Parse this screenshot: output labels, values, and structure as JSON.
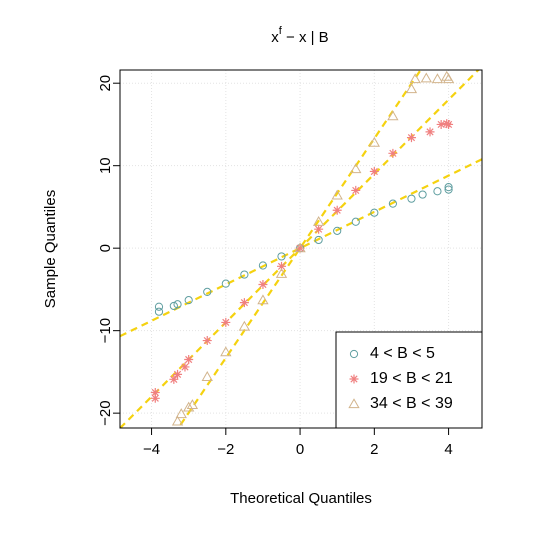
{
  "chart_data": {
    "type": "qqplot",
    "title": {
      "base": "x",
      "superscript": "f",
      "rest": " − x | B"
    },
    "x_label": "Theoretical Quantiles",
    "y_label": "Sample Quantiles",
    "xlim": [
      -4.85,
      4.9
    ],
    "ylim": [
      -21.8,
      21.6
    ],
    "xticks": [
      {
        "value": -4,
        "label": "−4"
      },
      {
        "value": -2,
        "label": "−2"
      },
      0,
      2,
      4
    ],
    "yticks": [
      {
        "value": -20,
        "label": "−20"
      },
      {
        "value": -10,
        "label": "−10"
      },
      0,
      10,
      20
    ],
    "grid": true,
    "legend": "bottomright",
    "line_color": "#f5d20f",
    "series": [
      {
        "name": "4 < B < 5",
        "color": "#5f9ea0",
        "marker": "circle",
        "line_intercept": 0,
        "line_slope": 2.2,
        "x": [
          -3.8,
          -3.8,
          -3.4,
          -3.3,
          -3.0,
          -2.5,
          -2.0,
          -1.5,
          -1.0,
          -0.5,
          0,
          0.5,
          1.0,
          1.5,
          2.0,
          2.5,
          3.0,
          3.3,
          3.7,
          4.0,
          4.0
        ],
        "values": [
          -7.1,
          -7.7,
          -7.0,
          -6.8,
          -6.3,
          -5.3,
          -4.3,
          -3.2,
          -2.1,
          -1.0,
          0,
          1.0,
          2.1,
          3.2,
          4.3,
          5.4,
          6.0,
          6.5,
          6.9,
          7.4,
          7.1
        ]
      },
      {
        "name": "19 < B < 21",
        "color": "#f08080",
        "marker": "asterisk",
        "line_intercept": 0,
        "line_slope": 4.5,
        "x": [
          -3.9,
          -3.9,
          -3.4,
          -3.3,
          -3.1,
          -3.0,
          -2.5,
          -2.0,
          -1.5,
          -1.0,
          -0.5,
          0,
          0.5,
          1.0,
          1.5,
          2.0,
          2.5,
          3.0,
          3.5,
          3.8,
          3.95,
          4.0
        ],
        "values": [
          -17.5,
          -18.2,
          -15.9,
          -15.3,
          -14.4,
          -13.5,
          -11.2,
          -9.0,
          -6.6,
          -4.4,
          -2.2,
          0,
          2.3,
          4.6,
          7.0,
          9.3,
          11.5,
          13.4,
          14.1,
          15.0,
          15.1,
          15.0
        ]
      },
      {
        "name": "34 < B < 39",
        "color": "#d2b48c",
        "marker": "triangle",
        "line_intercept": 0,
        "line_slope": 6.65,
        "x": [
          -3.3,
          -3.2,
          -3.0,
          -2.9,
          -2.5,
          -2.0,
          -1.5,
          -1.0,
          -0.5,
          0,
          0.5,
          1.0,
          1.5,
          2.0,
          2.5,
          3.0,
          3.1,
          3.4,
          3.7,
          3.95,
          4.0
        ],
        "values": [
          -21.0,
          -20.1,
          -19.3,
          -19.0,
          -15.6,
          -12.6,
          -9.5,
          -6.3,
          -3.1,
          0,
          3.2,
          6.4,
          9.6,
          12.8,
          16.0,
          19.3,
          20.5,
          20.6,
          20.5,
          20.8,
          20.5
        ]
      }
    ]
  }
}
